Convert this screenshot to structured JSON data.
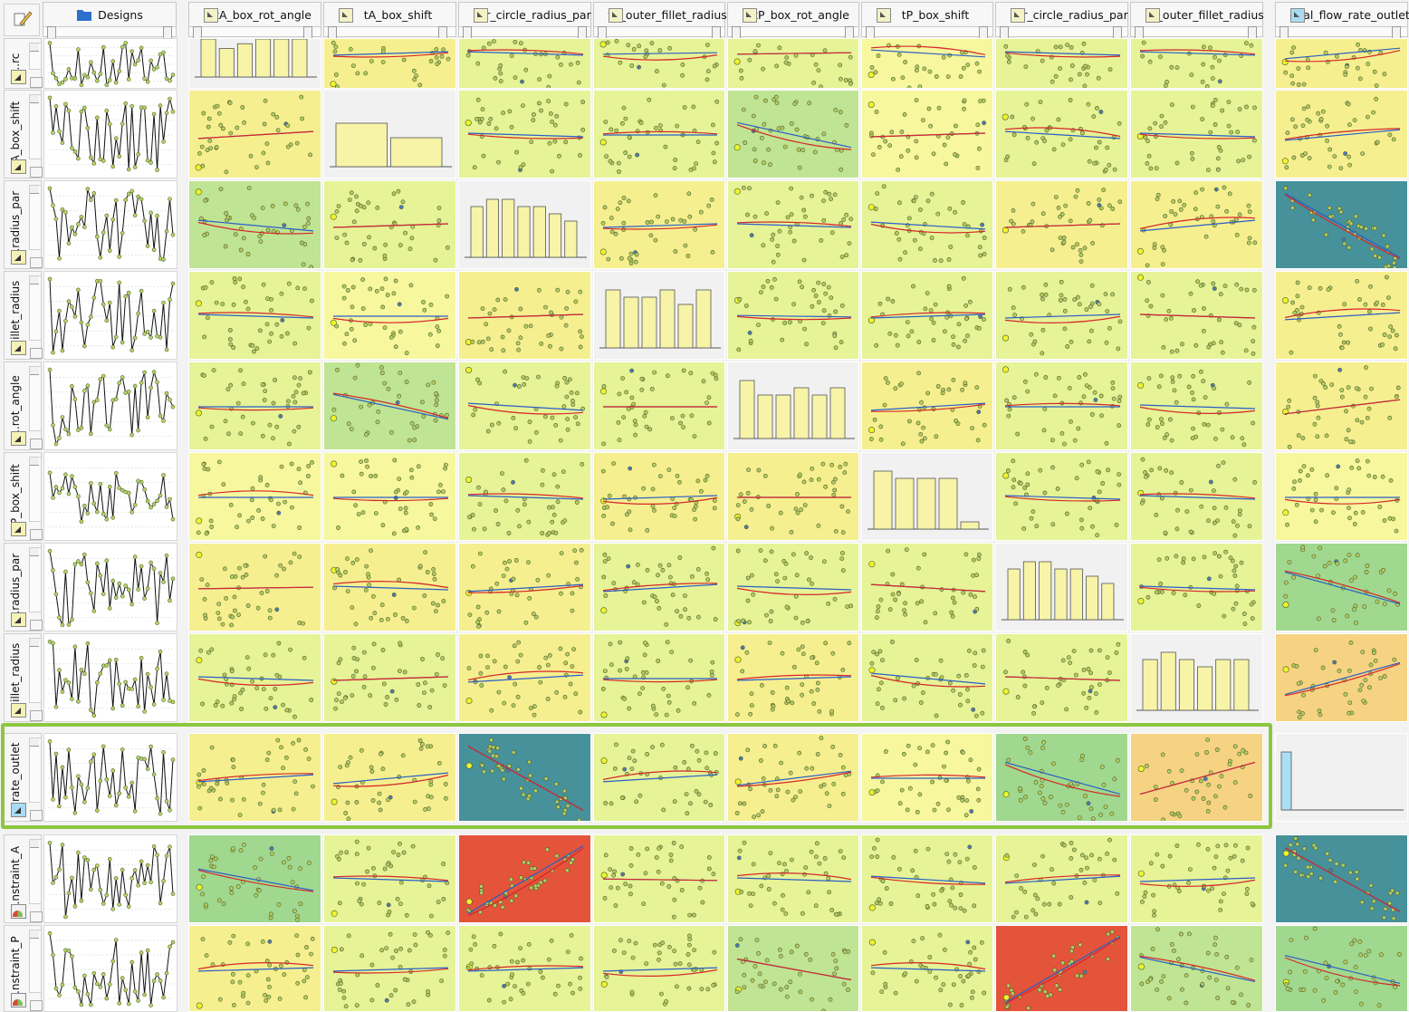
{
  "designs_header": "Designs",
  "columns": [
    "tA_box_rot_angle",
    "tA_box_shift",
    "...r_circle_radius_par",
    "tA_outer_fillet_radius",
    "tP_box_rot_angle",
    "tP_box_shift",
    "...r_circle_radius_par",
    "tP_outer_fillet_radius",
    "eval_flow_rate_outlet"
  ],
  "rows": [
    "...rc",
    "tA_box_shift",
    "...radius_par",
    "...illet_radius",
    "...rot_angle",
    "tP_box_shift",
    "...radius_par",
    "...illet_radius",
    "...rate_outlet",
    "...nstraint_A",
    "...nstraint_P"
  ],
  "colors": {
    "yellow": "#f6ef8f",
    "lightyellow": "#f7f79e",
    "yellowgreen": "#e6f396",
    "lightgreen": "#bfe493",
    "green": "#9fd88e",
    "teal": "#47919a",
    "red": "#e4543a",
    "orange": "#f6d382",
    "histogram_bg": "#f1f1f1",
    "histogram_bar": "#f7f4a8",
    "histogram_bar_outlet": "#a9def4",
    "highlight": "#8dc63f",
    "fit_red": "#d6262a",
    "fit_blue": "#2b5ec8"
  },
  "chart_data": {
    "type": "scatter",
    "variables": [
      "tA_box_rot_angle",
      "tA_box_shift",
      "...r_circle_radius_par",
      "tA_outer_fillet_radius",
      "tP_box_rot_angle",
      "tP_box_shift",
      "...r_circle_radius_par",
      "tP_outer_fillet_radius",
      "eval_flow_rate_outlet"
    ],
    "cell_colors": [
      [
        "hist",
        "yellow",
        "yellowgreen",
        "yellowgreen",
        "yellowgreen",
        "lightyellow",
        "yellowgreen",
        "yellowgreen",
        "yellow"
      ],
      [
        "yellow",
        "hist",
        "yellowgreen",
        "yellowgreen",
        "lightgreen",
        "lightyellow",
        "yellowgreen",
        "yellowgreen",
        "yellow"
      ],
      [
        "lightgreen",
        "yellowgreen",
        "hist",
        "yellow",
        "yellowgreen",
        "yellowgreen",
        "yellow",
        "yellow",
        "teal"
      ],
      [
        "yellowgreen",
        "lightyellow",
        "yellow",
        "hist",
        "yellowgreen",
        "yellowgreen",
        "yellowgreen",
        "yellowgreen",
        "yellow"
      ],
      [
        "yellowgreen",
        "lightgreen",
        "yellowgreen",
        "yellowgreen",
        "hist",
        "yellow",
        "yellowgreen",
        "yellowgreen",
        "yellow"
      ],
      [
        "lightyellow",
        "lightyellow",
        "yellowgreen",
        "yellow",
        "yellow",
        "hist",
        "yellowgreen",
        "yellowgreen",
        "lightyellow"
      ],
      [
        "yellow",
        "yellow",
        "yellow",
        "yellowgreen",
        "yellowgreen",
        "yellowgreen",
        "hist",
        "yellowgreen",
        "green"
      ],
      [
        "yellowgreen",
        "yellowgreen",
        "yellow",
        "yellowgreen",
        "yellow",
        "yellowgreen",
        "yellowgreen",
        "hist",
        "orange"
      ],
      [
        "yellow",
        "yellow",
        "teal",
        "yellowgreen",
        "yellow",
        "lightyellow",
        "green",
        "orange",
        "hist"
      ],
      [
        "green",
        "yellowgreen",
        "red",
        "yellowgreen",
        "yellowgreen",
        "yellowgreen",
        "yellowgreen",
        "yellowgreen",
        "teal"
      ],
      [
        "yellow",
        "yellowgreen",
        "yellowgreen",
        "yellowgreen",
        "lightgreen",
        "yellowgreen",
        "red",
        "lightgreen",
        "green"
      ]
    ],
    "trend_slopes": [
      [
        0,
        0.05,
        -0.05,
        0.02,
        0.02,
        -0.1,
        -0.05,
        -0.05,
        0.15
      ],
      [
        0.1,
        0,
        -0.05,
        0,
        -0.35,
        0.05,
        -0.1,
        -0.05,
        0.15
      ],
      [
        -0.15,
        0.05,
        0,
        0.05,
        -0.05,
        -0.1,
        0.05,
        0.15,
        -0.9
      ],
      [
        -0.05,
        0,
        0.05,
        0,
        -0.02,
        0.05,
        0.05,
        -0.05,
        0.1
      ],
      [
        0,
        -0.35,
        -0.1,
        0,
        0,
        0.1,
        0,
        -0.05,
        0.2
      ],
      [
        0,
        0,
        -0.05,
        0.05,
        0,
        0,
        -0.05,
        -0.05,
        0
      ],
      [
        0.02,
        -0.05,
        0.1,
        0.1,
        -0.05,
        -0.1,
        0,
        -0.05,
        -0.45
      ],
      [
        -0.05,
        0.05,
        0.1,
        0,
        0.05,
        -0.15,
        -0.05,
        0,
        0.45
      ],
      [
        0.1,
        0.15,
        -0.9,
        0.1,
        0.2,
        0,
        -0.45,
        0.45,
        0
      ],
      [
        -0.3,
        -0.05,
        0.95,
        -0.02,
        -0.05,
        -0.1,
        0.1,
        0.05,
        -0.9
      ],
      [
        0.05,
        0.05,
        0.05,
        0.05,
        -0.3,
        -0.05,
        0.95,
        -0.35,
        -0.4
      ]
    ],
    "histograms": {
      "tA_box_rot_angle": [
        8,
        6,
        7,
        8,
        8,
        8
      ],
      "tA_box_shift": [
        6,
        4
      ],
      "...r_circle_radius_par": [
        7,
        8,
        8,
        7,
        7,
        6,
        5
      ],
      "tA_outer_fillet_radius": [
        8,
        7,
        7,
        8,
        6,
        8
      ],
      "tP_box_rot_angle": [
        8,
        6,
        6,
        7,
        6,
        7
      ],
      "tP_box_shift": [
        8,
        7,
        7,
        7,
        1
      ],
      "tP_outer_fillet_radius": [
        7,
        8,
        7,
        6,
        7,
        7
      ],
      "eval_flow_rate_outlet": [
        8,
        0,
        0,
        0,
        0,
        0,
        0,
        0,
        0,
        0,
        0,
        0,
        0
      ]
    },
    "legend": "none",
    "grid": false
  }
}
